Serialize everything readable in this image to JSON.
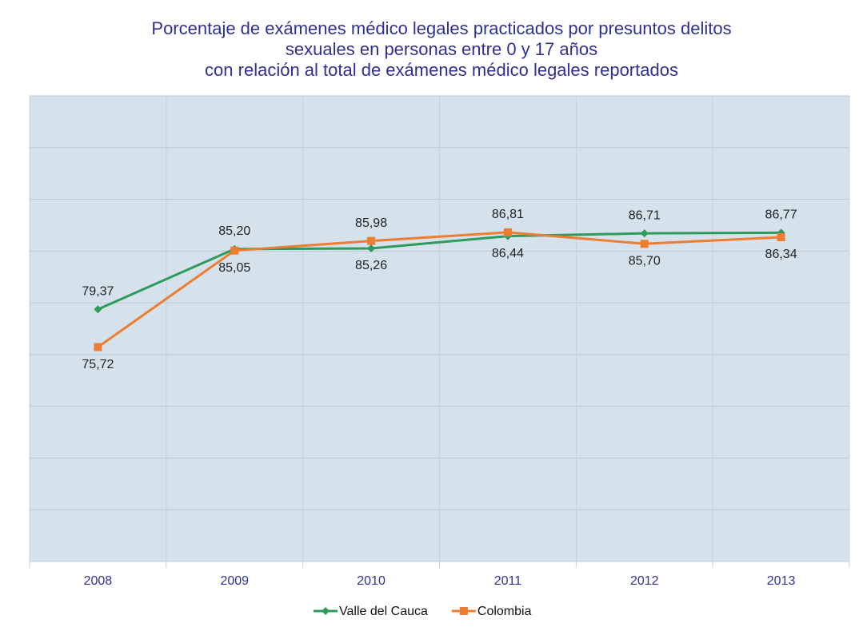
{
  "chart_data": {
    "type": "line",
    "title": [
      "Porcentaje de exámenes médico legales practicados por presuntos delitos",
      "sexuales en personas entre  0 y 17 años",
      "con relación al total de exámenes médico legales reportados"
    ],
    "categories": [
      "2008",
      "2009",
      "2010",
      "2011",
      "2012",
      "2013"
    ],
    "series": [
      {
        "name": "Valle del Cauca",
        "color": "#2e9a5b",
        "marker": "diamond",
        "values": [
          79.37,
          85.2,
          85.26,
          86.44,
          86.71,
          86.77
        ],
        "value_labels": [
          "79,37",
          "85,20",
          "85,26",
          "86,44",
          "86,71",
          "86,77"
        ]
      },
      {
        "name": "Colombia",
        "color": "#ed7d31",
        "marker": "square",
        "values": [
          75.72,
          85.05,
          85.98,
          86.81,
          85.7,
          86.34
        ],
        "value_labels": [
          "75,72",
          "85,05",
          "85,98",
          "86,81",
          "85,70",
          "86,34"
        ]
      }
    ],
    "ylim": [
      55,
      100
    ],
    "yticks": [
      55,
      60,
      65,
      70,
      75,
      80,
      85,
      90,
      95,
      100
    ],
    "grid": true,
    "legend": "bottom"
  }
}
